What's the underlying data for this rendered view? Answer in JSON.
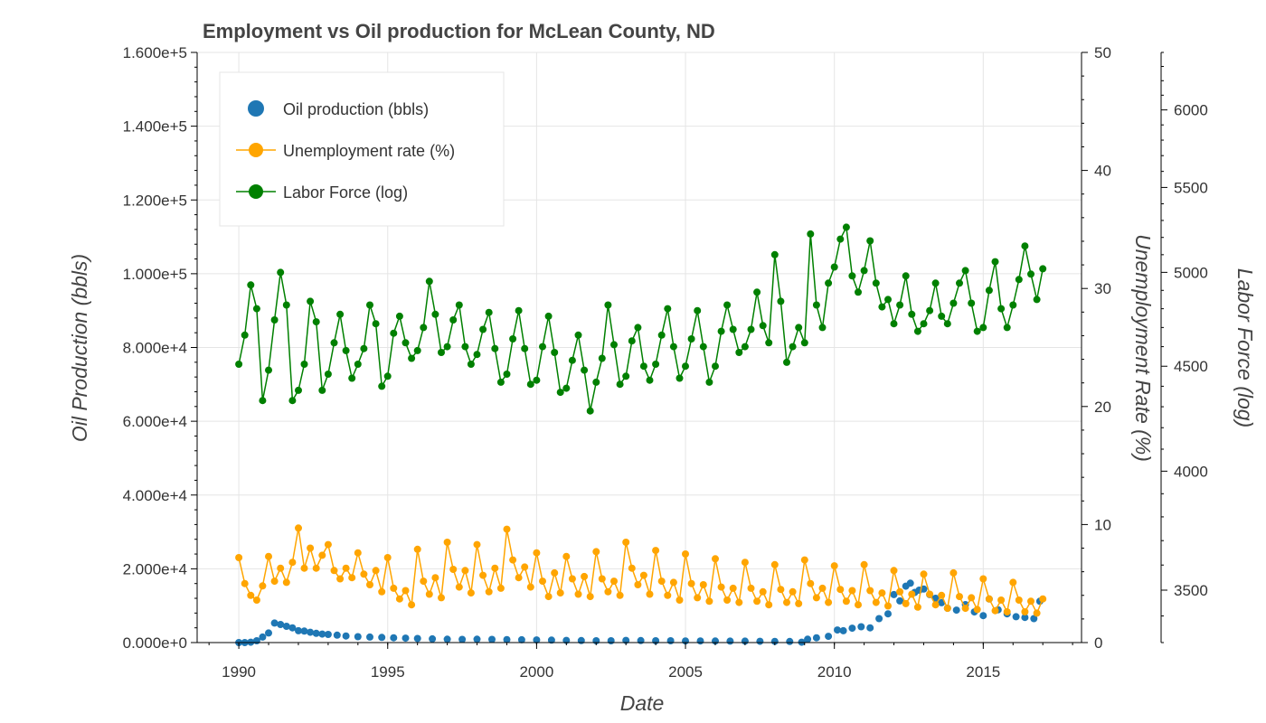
{
  "chart_data": {
    "type": "scatter",
    "title": "Employment vs Oil production for McLean County, ND",
    "xlabel": "Date",
    "x_ticks": [
      "1990",
      "1995",
      "2000",
      "2005",
      "2010",
      "2015"
    ],
    "xlim": [
      1988.6,
      2018.3
    ],
    "axes": {
      "left": {
        "label": "Oil Production (bbls)",
        "ylim": [
          0,
          160000
        ],
        "ticks": [
          0,
          20000,
          40000,
          60000,
          80000,
          100000,
          120000,
          140000,
          160000
        ],
        "tick_labels": [
          "0.000e+0",
          "2.000e+4",
          "4.000e+4",
          "6.000e+4",
          "8.000e+4",
          "1.000e+5",
          "1.200e+5",
          "1.400e+5",
          "1.600e+5"
        ]
      },
      "right1": {
        "label": "Unemployment Rate (%)",
        "ylim": [
          0,
          50
        ],
        "ticks": [
          0,
          10,
          20,
          30,
          40,
          50
        ],
        "tick_labels": [
          "0",
          "10",
          "20",
          "30",
          "40",
          "50"
        ]
      },
      "right2": {
        "label": "Labor Force (log)",
        "scale": "log",
        "ylim": [
          3300,
          6400
        ],
        "ticks": [
          3500,
          4000,
          4500,
          5000,
          5500,
          6000
        ],
        "tick_labels": [
          "3500",
          "4000",
          "4500",
          "5000",
          "5500",
          "6000"
        ]
      }
    },
    "legend_position": "top-left",
    "grid": true,
    "series": [
      {
        "name": "Oil production (bbls)",
        "axis": "left",
        "style": "scatter",
        "color": "#1f77b4",
        "x": [
          1990.0,
          1990.2,
          1990.4,
          1990.6,
          1990.8,
          1991.0,
          1991.2,
          1991.4,
          1991.6,
          1991.8,
          1992.0,
          1992.2,
          1992.4,
          1992.6,
          1992.8,
          1993.0,
          1993.3,
          1993.6,
          1994.0,
          1994.4,
          1994.8,
          1995.2,
          1995.6,
          1996.0,
          1996.5,
          1997.0,
          1997.5,
          1998.0,
          1998.5,
          1999.0,
          1999.5,
          2000.0,
          2000.5,
          2001.0,
          2001.5,
          2002.0,
          2002.5,
          2003.0,
          2003.5,
          2004.0,
          2004.5,
          2005.0,
          2005.5,
          2006.0,
          2006.5,
          2007.0,
          2007.5,
          2008.0,
          2008.5,
          2008.9,
          2009.1,
          2009.4,
          2009.8,
          2010.1,
          2010.3,
          2010.6,
          2010.9,
          2011.2,
          2011.5,
          2011.8,
          2012.0,
          2012.2,
          2012.4,
          2012.55,
          2012.7,
          2012.85,
          2013.0,
          2013.2,
          2013.4,
          2013.6,
          2013.8,
          2014.1,
          2014.4,
          2014.7,
          2015.0,
          2015.2,
          2015.5,
          2015.8,
          2016.1,
          2016.4,
          2016.7,
          2016.9
        ],
        "values": [
          0,
          0,
          100,
          500,
          1500,
          2600,
          5300,
          4900,
          4400,
          4000,
          3200,
          3100,
          2800,
          2500,
          2300,
          2200,
          2000,
          1800,
          1600,
          1500,
          1400,
          1300,
          1200,
          1100,
          1000,
          900,
          850,
          900,
          850,
          800,
          750,
          700,
          650,
          600,
          550,
          500,
          500,
          600,
          550,
          500,
          480,
          450,
          450,
          420,
          400,
          380,
          350,
          330,
          300,
          100,
          900,
          1300,
          1700,
          3400,
          3200,
          3900,
          4300,
          4000,
          6500,
          7800,
          13000,
          11300,
          15300,
          16100,
          13600,
          14200,
          14500,
          13000,
          12000,
          10800,
          9300,
          8800,
          10300,
          8300,
          7300,
          11800,
          8900,
          7800,
          7000,
          6800,
          6500,
          11200
        ]
      },
      {
        "name": "Unemployment rate (%)",
        "axis": "right1",
        "style": "line-marker",
        "color": "#ffa500",
        "x": [
          1990.0,
          1990.2,
          1990.4,
          1990.6,
          1990.8,
          1991.0,
          1991.2,
          1991.4,
          1991.6,
          1991.8,
          1992.0,
          1992.2,
          1992.4,
          1992.6,
          1992.8,
          1993.0,
          1993.2,
          1993.4,
          1993.6,
          1993.8,
          1994.0,
          1994.2,
          1994.4,
          1994.6,
          1994.8,
          1995.0,
          1995.2,
          1995.4,
          1995.6,
          1995.8,
          1996.0,
          1996.2,
          1996.4,
          1996.6,
          1996.8,
          1997.0,
          1997.2,
          1997.4,
          1997.6,
          1997.8,
          1998.0,
          1998.2,
          1998.4,
          1998.6,
          1998.8,
          1999.0,
          1999.2,
          1999.4,
          1999.6,
          1999.8,
          2000.0,
          2000.2,
          2000.4,
          2000.6,
          2000.8,
          2001.0,
          2001.2,
          2001.4,
          2001.6,
          2001.8,
          2002.0,
          2002.2,
          2002.4,
          2002.6,
          2002.8,
          2003.0,
          2003.2,
          2003.4,
          2003.6,
          2003.8,
          2004.0,
          2004.2,
          2004.4,
          2004.6,
          2004.8,
          2005.0,
          2005.2,
          2005.4,
          2005.6,
          2005.8,
          2006.0,
          2006.2,
          2006.4,
          2006.6,
          2006.8,
          2007.0,
          2007.2,
          2007.4,
          2007.6,
          2007.8,
          2008.0,
          2008.2,
          2008.4,
          2008.6,
          2008.8,
          2009.0,
          2009.2,
          2009.4,
          2009.6,
          2009.8,
          2010.0,
          2010.2,
          2010.4,
          2010.6,
          2010.8,
          2011.0,
          2011.2,
          2011.4,
          2011.6,
          2011.8,
          2012.0,
          2012.2,
          2012.4,
          2012.6,
          2012.8,
          2013.0,
          2013.2,
          2013.4,
          2013.6,
          2013.8,
          2014.0,
          2014.2,
          2014.4,
          2014.6,
          2014.8,
          2015.0,
          2015.2,
          2015.4,
          2015.6,
          2015.8,
          2016.0,
          2016.2,
          2016.4,
          2016.6,
          2016.8,
          2017.0
        ],
        "values": [
          7.2,
          5.0,
          4.0,
          3.6,
          4.8,
          7.3,
          5.2,
          6.3,
          5.1,
          6.8,
          9.7,
          6.3,
          8.0,
          6.3,
          7.4,
          8.3,
          6.1,
          5.4,
          6.3,
          5.5,
          7.6,
          5.8,
          4.9,
          6.1,
          4.3,
          7.2,
          4.6,
          3.7,
          4.4,
          3.2,
          7.9,
          5.2,
          4.1,
          5.5,
          3.8,
          8.5,
          6.2,
          4.7,
          6.1,
          4.2,
          8.3,
          5.7,
          4.3,
          6.3,
          4.6,
          9.6,
          7.0,
          5.5,
          6.4,
          4.7,
          7.6,
          5.2,
          3.9,
          5.9,
          4.2,
          7.3,
          5.4,
          4.1,
          5.6,
          3.9,
          7.7,
          5.4,
          4.3,
          5.2,
          4.0,
          8.5,
          6.3,
          4.9,
          5.7,
          4.1,
          7.8,
          5.2,
          4.0,
          5.1,
          3.6,
          7.5,
          5.0,
          3.8,
          4.9,
          3.5,
          7.1,
          4.7,
          3.6,
          4.6,
          3.4,
          6.8,
          4.6,
          3.5,
          4.3,
          3.2,
          6.6,
          4.5,
          3.4,
          4.3,
          3.3,
          7.0,
          5.0,
          3.8,
          4.6,
          3.4,
          6.5,
          4.5,
          3.5,
          4.4,
          3.2,
          6.6,
          4.4,
          3.4,
          4.2,
          3.1,
          6.1,
          4.3,
          3.3,
          4.1,
          3.0,
          5.8,
          4.1,
          3.2,
          4.0,
          2.9,
          5.9,
          3.9,
          2.9,
          3.8,
          2.8,
          5.4,
          3.7,
          2.7,
          3.6,
          2.6,
          5.1,
          3.6,
          2.6,
          3.5,
          2.5,
          3.7
        ]
      },
      {
        "name": "Labor Force (log)",
        "axis": "right2",
        "style": "line-marker",
        "color": "#008000",
        "x": [
          1990.0,
          1990.2,
          1990.4,
          1990.6,
          1990.8,
          1991.0,
          1991.2,
          1991.4,
          1991.6,
          1991.8,
          1992.0,
          1992.2,
          1992.4,
          1992.6,
          1992.8,
          1993.0,
          1993.2,
          1993.4,
          1993.6,
          1993.8,
          1994.0,
          1994.2,
          1994.4,
          1994.6,
          1994.8,
          1995.0,
          1995.2,
          1995.4,
          1995.6,
          1995.8,
          1996.0,
          1996.2,
          1996.4,
          1996.6,
          1996.8,
          1997.0,
          1997.2,
          1997.4,
          1997.6,
          1997.8,
          1998.0,
          1998.2,
          1998.4,
          1998.6,
          1998.8,
          1999.0,
          1999.2,
          1999.4,
          1999.6,
          1999.8,
          2000.0,
          2000.2,
          2000.4,
          2000.6,
          2000.8,
          2001.0,
          2001.2,
          2001.4,
          2001.6,
          2001.8,
          2002.0,
          2002.2,
          2002.4,
          2002.6,
          2002.8,
          2003.0,
          2003.2,
          2003.4,
          2003.6,
          2003.8,
          2004.0,
          2004.2,
          2004.4,
          2004.6,
          2004.8,
          2005.0,
          2005.2,
          2005.4,
          2005.6,
          2005.8,
          2006.0,
          2006.2,
          2006.4,
          2006.6,
          2006.8,
          2007.0,
          2007.2,
          2007.4,
          2007.6,
          2007.8,
          2008.0,
          2008.2,
          2008.4,
          2008.6,
          2008.8,
          2009.0,
          2009.2,
          2009.4,
          2009.6,
          2009.8,
          2010.0,
          2010.2,
          2010.4,
          2010.6,
          2010.8,
          2011.0,
          2011.2,
          2011.4,
          2011.6,
          2011.8,
          2012.0,
          2012.2,
          2012.4,
          2012.6,
          2012.8,
          2013.0,
          2013.2,
          2013.4,
          2013.6,
          2013.8,
          2014.0,
          2014.2,
          2014.4,
          2014.6,
          2014.8,
          2015.0,
          2015.2,
          2015.4,
          2015.6,
          2015.8,
          2016.0,
          2016.2,
          2016.4,
          2016.6,
          2016.8,
          2017.0
        ],
        "values": [
          4510,
          4660,
          4930,
          4800,
          4330,
          4480,
          4740,
          5000,
          4820,
          4330,
          4380,
          4510,
          4840,
          4730,
          4380,
          4460,
          4620,
          4770,
          4580,
          4440,
          4510,
          4590,
          4820,
          4720,
          4400,
          4450,
          4670,
          4760,
          4620,
          4540,
          4580,
          4700,
          4950,
          4770,
          4570,
          4600,
          4740,
          4820,
          4600,
          4510,
          4560,
          4690,
          4780,
          4590,
          4420,
          4460,
          4640,
          4790,
          4590,
          4410,
          4430,
          4600,
          4760,
          4570,
          4370,
          4390,
          4530,
          4660,
          4480,
          4280,
          4420,
          4540,
          4820,
          4610,
          4410,
          4450,
          4630,
          4700,
          4500,
          4430,
          4510,
          4660,
          4800,
          4600,
          4440,
          4500,
          4640,
          4790,
          4600,
          4420,
          4500,
          4680,
          4820,
          4690,
          4570,
          4600,
          4690,
          4890,
          4710,
          4620,
          5100,
          4840,
          4520,
          4600,
          4700,
          4620,
          5220,
          4820,
          4700,
          4940,
          5030,
          5190,
          5260,
          4980,
          4890,
          5010,
          5180,
          4940,
          4810,
          4850,
          4720,
          4820,
          4980,
          4770,
          4680,
          4720,
          4790,
          4940,
          4760,
          4720,
          4830,
          4940,
          5010,
          4830,
          4680,
          4700,
          4900,
          5060,
          4800,
          4700,
          4820,
          4960,
          5150,
          4990,
          4850,
          5020
        ]
      }
    ]
  }
}
